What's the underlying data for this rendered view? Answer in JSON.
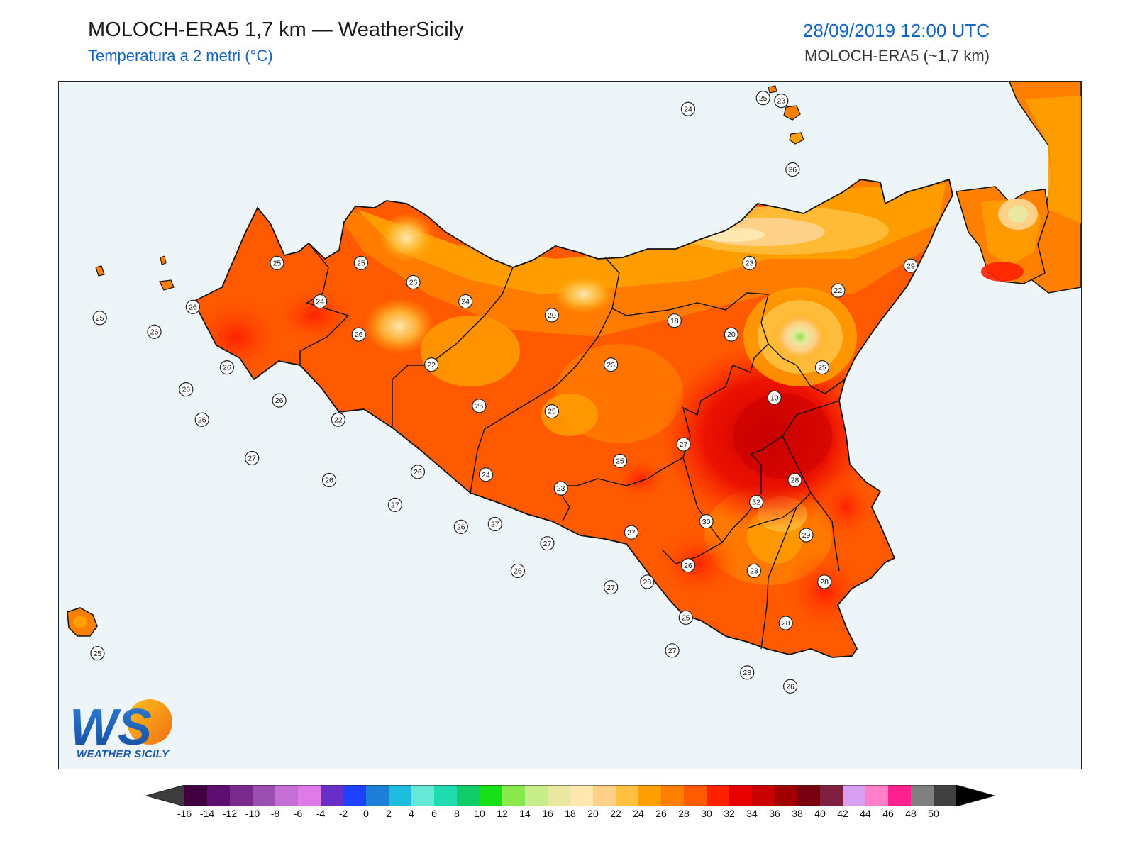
{
  "header": {
    "title": "MOLOCH-ERA5 1,7 km — WeatherSicily",
    "subtitle": "Temperatura a 2 metri (°C)",
    "datetime": "28/09/2019 12:00 UTC",
    "model": "MOLOCH-ERA5 (~1,7 km)"
  },
  "logo": {
    "letters": "WS",
    "text": "WEATHER SICILY"
  },
  "station_values": [
    {
      "v": "24",
      "lon": 14.62,
      "lat": 38.8
    },
    {
      "v": "25",
      "lon": 14.95,
      "lat": 38.84
    },
    {
      "v": "23",
      "lon": 15.03,
      "lat": 38.83
    },
    {
      "v": "26",
      "lon": 15.08,
      "lat": 38.58
    },
    {
      "v": "25",
      "lon": 12.81,
      "lat": 38.24
    },
    {
      "v": "25",
      "lon": 13.18,
      "lat": 38.24
    },
    {
      "v": "26",
      "lon": 13.41,
      "lat": 38.17
    },
    {
      "v": "24",
      "lon": 13.0,
      "lat": 38.1
    },
    {
      "v": "24",
      "lon": 13.64,
      "lat": 38.1
    },
    {
      "v": "26",
      "lon": 12.44,
      "lat": 38.08
    },
    {
      "v": "25",
      "lon": 12.03,
      "lat": 38.04
    },
    {
      "v": "26",
      "lon": 12.27,
      "lat": 37.99
    },
    {
      "v": "26",
      "lon": 13.17,
      "lat": 37.98
    },
    {
      "v": "20",
      "lon": 14.02,
      "lat": 38.05
    },
    {
      "v": "18",
      "lon": 14.56,
      "lat": 38.03
    },
    {
      "v": "20",
      "lon": 14.81,
      "lat": 37.98
    },
    {
      "v": "23",
      "lon": 14.89,
      "lat": 38.24
    },
    {
      "v": "22",
      "lon": 15.28,
      "lat": 38.14
    },
    {
      "v": "29",
      "lon": 15.6,
      "lat": 38.23
    },
    {
      "v": "26",
      "lon": 12.59,
      "lat": 37.86
    },
    {
      "v": "22",
      "lon": 13.49,
      "lat": 37.87
    },
    {
      "v": "23",
      "lon": 14.28,
      "lat": 37.87
    },
    {
      "v": "25",
      "lon": 15.21,
      "lat": 37.86
    },
    {
      "v": "26",
      "lon": 12.41,
      "lat": 37.78
    },
    {
      "v": "26",
      "lon": 12.82,
      "lat": 37.74
    },
    {
      "v": "10",
      "lon": 15.0,
      "lat": 37.75
    },
    {
      "v": "25",
      "lon": 13.7,
      "lat": 37.72
    },
    {
      "v": "25",
      "lon": 14.02,
      "lat": 37.7
    },
    {
      "v": "26",
      "lon": 12.48,
      "lat": 37.67
    },
    {
      "v": "22",
      "lon": 13.08,
      "lat": 37.67
    },
    {
      "v": "27",
      "lon": 14.6,
      "lat": 37.58
    },
    {
      "v": "27",
      "lon": 12.7,
      "lat": 37.53
    },
    {
      "v": "25",
      "lon": 14.32,
      "lat": 37.52
    },
    {
      "v": "26",
      "lon": 13.43,
      "lat": 37.48
    },
    {
      "v": "24",
      "lon": 13.73,
      "lat": 37.47
    },
    {
      "v": "26",
      "lon": 13.04,
      "lat": 37.45
    },
    {
      "v": "28",
      "lon": 15.09,
      "lat": 37.45
    },
    {
      "v": "23",
      "lon": 14.06,
      "lat": 37.42
    },
    {
      "v": "32",
      "lon": 14.92,
      "lat": 37.37
    },
    {
      "v": "27",
      "lon": 13.33,
      "lat": 37.36
    },
    {
      "v": "30",
      "lon": 14.7,
      "lat": 37.3
    },
    {
      "v": "27",
      "lon": 13.77,
      "lat": 37.29
    },
    {
      "v": "26",
      "lon": 13.62,
      "lat": 37.28
    },
    {
      "v": "27",
      "lon": 14.37,
      "lat": 37.26
    },
    {
      "v": "29",
      "lon": 15.14,
      "lat": 37.25
    },
    {
      "v": "27",
      "lon": 14.0,
      "lat": 37.22
    },
    {
      "v": "26",
      "lon": 14.62,
      "lat": 37.14
    },
    {
      "v": "23",
      "lon": 14.91,
      "lat": 37.12
    },
    {
      "v": "26",
      "lon": 13.87,
      "lat": 37.12
    },
    {
      "v": "28",
      "lon": 14.44,
      "lat": 37.08
    },
    {
      "v": "28",
      "lon": 15.22,
      "lat": 37.08
    },
    {
      "v": "27",
      "lon": 14.28,
      "lat": 37.06
    },
    {
      "v": "25",
      "lon": 14.61,
      "lat": 36.95
    },
    {
      "v": "28",
      "lon": 15.05,
      "lat": 36.93
    },
    {
      "v": "27",
      "lon": 14.55,
      "lat": 36.83
    },
    {
      "v": "25",
      "lon": 12.02,
      "lat": 36.82
    },
    {
      "v": "28",
      "lon": 14.88,
      "lat": 36.75
    },
    {
      "v": "26",
      "lon": 15.07,
      "lat": 36.7
    }
  ],
  "colorbar": {
    "labels": [
      "-16",
      "-14",
      "-12",
      "-10",
      "-8",
      "-6",
      "-4",
      "-2",
      "0",
      "2",
      "4",
      "6",
      "8",
      "10",
      "12",
      "14",
      "16",
      "18",
      "20",
      "22",
      "24",
      "26",
      "28",
      "30",
      "32",
      "34",
      "36",
      "38",
      "40",
      "42",
      "44",
      "46",
      "48",
      "50"
    ],
    "colors": [
      "#400040",
      "#5c0f6e",
      "#7a2a8c",
      "#9b4fb0",
      "#c46fd6",
      "#e07ae8",
      "#6a2ec8",
      "#2040ff",
      "#1e7fd8",
      "#1ebde0",
      "#66e8d8",
      "#1edcb0",
      "#12cc6a",
      "#18e018",
      "#8ae84a",
      "#c8ee8c",
      "#e8e8a0",
      "#ffe8b0",
      "#ffd088",
      "#ffc040",
      "#ffa000",
      "#ff8000",
      "#ff5a00",
      "#ff2000",
      "#e80000",
      "#c80000",
      "#a00000",
      "#780010",
      "#802040",
      "#d8a0f0",
      "#ff80c8",
      "#ff2090",
      "#808080",
      "#404040"
    ],
    "under_color": "#3c3c3c",
    "over_color": "#000000"
  }
}
